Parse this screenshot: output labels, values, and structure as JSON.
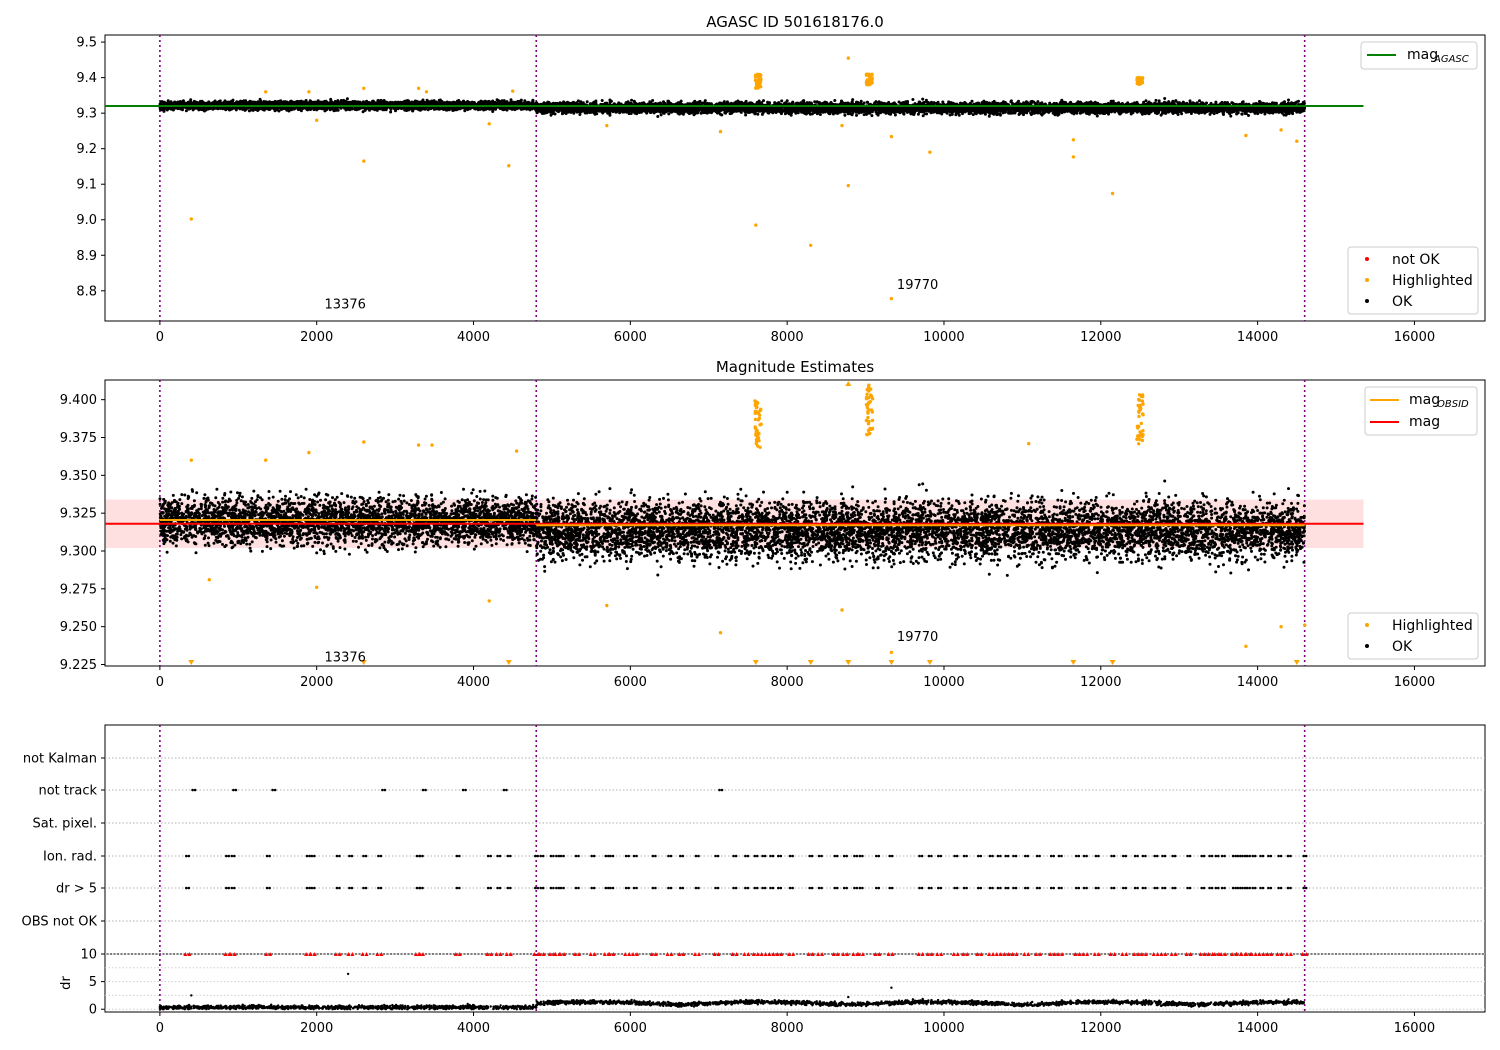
{
  "chart_data": [
    {
      "panel": "top",
      "type": "scatter",
      "title": "AGASC ID 501618176.0",
      "xlabel": "",
      "ylabel": "",
      "xlim": [
        -700,
        16900
      ],
      "ylim": [
        8.715,
        9.52
      ],
      "x_ticks": [
        0,
        2000,
        4000,
        6000,
        8000,
        10000,
        12000,
        14000,
        16000
      ],
      "y_ticks": [
        8.8,
        8.9,
        9.0,
        9.1,
        9.2,
        9.3,
        9.4,
        9.5
      ],
      "y_tick_labels": [
        "8.8",
        "8.9",
        "9.0",
        "9.1",
        "9.2",
        "9.3",
        "9.4",
        "9.5"
      ],
      "vlines": [
        0,
        4800,
        14600
      ],
      "hline": {
        "name": "mag_AGASC",
        "y": 9.32,
        "x_range": [
          -700,
          15350
        ],
        "color": "#008000"
      },
      "annotations": [
        {
          "text": "13376",
          "x": 2100,
          "y": 8.75
        },
        {
          "text": "19770",
          "x": 9400,
          "y": 8.805
        }
      ],
      "legend_line": {
        "label": "mag",
        "sub": "AGASC",
        "position": "top-right"
      },
      "legend_points": [
        {
          "label": "not OK",
          "color": "#ff0000"
        },
        {
          "label": "Highlighted",
          "color": "#ffa500"
        },
        {
          "label": "OK",
          "color": "#000000"
        }
      ],
      "series": [
        {
          "name": "OK",
          "color": "#000000",
          "band": {
            "segments": [
              [
                0,
                4800,
                9.322,
                0.01
              ],
              [
                4800,
                14600,
                9.315,
                0.013
              ]
            ]
          }
        },
        {
          "name": "Highlighted",
          "color": "#ffa500",
          "points": [
            [
              400,
              9.002
            ],
            [
              1350,
              9.36
            ],
            [
              1900,
              9.36
            ],
            [
              2000,
              9.28
            ],
            [
              2600,
              9.165
            ],
            [
              2600,
              9.37
            ],
            [
              3300,
              9.37
            ],
            [
              3400,
              9.36
            ],
            [
              4200,
              9.27
            ],
            [
              4450,
              9.152
            ],
            [
              4500,
              9.362
            ],
            [
              5700,
              9.265
            ],
            [
              7150,
              9.248
            ],
            [
              7600,
              8.985
            ],
            [
              8300,
              8.928
            ],
            [
              8700,
              9.265
            ],
            [
              8780,
              9.455
            ],
            [
              8780,
              9.096
            ],
            [
              9330,
              9.234
            ],
            [
              9330,
              8.778
            ],
            [
              9820,
              9.19
            ],
            [
              11650,
              9.225
            ],
            [
              11650,
              9.177
            ],
            [
              12150,
              9.074
            ],
            [
              13850,
              9.237
            ],
            [
              14300,
              9.253
            ],
            [
              14500,
              9.221
            ]
          ]
        },
        {
          "name": "Highlighted-cluster",
          "color": "#ffa500",
          "clusters": [
            [
              7630,
              9.37,
              9.41
            ],
            [
              9050,
              9.38,
              9.41
            ],
            [
              12500,
              9.38,
              9.4
            ]
          ]
        }
      ]
    },
    {
      "panel": "middle",
      "type": "scatter",
      "title": "Magnitude Estimates",
      "xlabel": "",
      "ylabel": "",
      "xlim": [
        -700,
        16900
      ],
      "ylim": [
        9.224,
        9.413
      ],
      "x_ticks": [
        0,
        2000,
        4000,
        6000,
        8000,
        10000,
        12000,
        14000,
        16000
      ],
      "y_ticks": [
        9.225,
        9.25,
        9.275,
        9.3,
        9.325,
        9.35,
        9.375,
        9.4
      ],
      "y_tick_labels": [
        "9.225",
        "9.250",
        "9.275",
        "9.300",
        "9.325",
        "9.350",
        "9.375",
        "9.400"
      ],
      "vlines": [
        0,
        4800,
        14600
      ],
      "mag_line": {
        "name": "mag",
        "y": 9.318,
        "band": [
          9.302,
          9.334
        ],
        "x_range": [
          -700,
          15350
        ],
        "color": "#ff0000"
      },
      "mag_obsid_segments": [
        [
          0,
          4800,
          9.3205
        ],
        [
          4800,
          14600,
          9.317
        ]
      ],
      "annotations": [
        {
          "text": "13376",
          "x": 2100,
          "y": 9.227
        },
        {
          "text": "19770",
          "x": 9400,
          "y": 9.2405
        }
      ],
      "legend_lines": [
        {
          "label": "mag",
          "sub": "OBSID",
          "color": "#ffa500"
        },
        {
          "label": "mag",
          "sub": "",
          "color": "#ff0000"
        }
      ],
      "legend_points": [
        {
          "label": "Highlighted",
          "color": "#ffa500"
        },
        {
          "label": "OK",
          "color": "#000000"
        }
      ],
      "series": [
        {
          "name": "OK",
          "color": "#000000",
          "band": {
            "segments": [
              [
                0,
                4800,
                9.32,
                0.013
              ],
              [
                4800,
                14600,
                9.314,
                0.016
              ]
            ]
          }
        },
        {
          "name": "Highlighted",
          "color": "#ffa500",
          "points": [
            [
              400,
              9.36
            ],
            [
              630,
              9.281
            ],
            [
              1350,
              9.36
            ],
            [
              1900,
              9.365
            ],
            [
              2000,
              9.276
            ],
            [
              2600,
              9.372
            ],
            [
              3300,
              9.37
            ],
            [
              3470,
              9.37
            ],
            [
              4200,
              9.267
            ],
            [
              4550,
              9.366
            ],
            [
              5700,
              9.264
            ],
            [
              7150,
              9.246
            ],
            [
              8700,
              9.261
            ],
            [
              9330,
              9.233
            ],
            [
              11080,
              9.371
            ],
            [
              13850,
              9.237
            ],
            [
              14300,
              9.25
            ],
            [
              14600,
              9.251
            ]
          ]
        },
        {
          "name": "Highlighted-cluster",
          "color": "#ffa500",
          "clusters": [
            [
              7630,
              9.368,
              9.4
            ],
            [
              9050,
              9.376,
              9.41
            ],
            [
              12500,
              9.37,
              9.404
            ]
          ]
        },
        {
          "name": "Highlighted-below-range",
          "color": "#ffa500",
          "x": [
            400,
            2600,
            4450,
            7600,
            8300,
            8780,
            9330,
            9820,
            11650,
            12150,
            14500
          ]
        },
        {
          "name": "Highlighted-above-range",
          "color": "#ffa500",
          "x": [
            8780
          ]
        }
      ]
    },
    {
      "panel": "flags",
      "type": "scatter",
      "xlim": [
        -700,
        16900
      ],
      "categories": [
        "not Kalman",
        "not track",
        "Sat. pixel.",
        "Ion. rad.",
        "dr > 5",
        "OBS not OK"
      ],
      "vlines": [
        0,
        4800,
        14600
      ],
      "series": [
        {
          "name": "not track",
          "color": "#000000",
          "x": [
            430,
            950,
            1450,
            2850,
            3370,
            3880,
            4400,
            7150
          ]
        },
        {
          "name": "Ion. rad.",
          "color": "#000000",
          "x": [
            350,
            860,
            930,
            1380,
            1890,
            1950,
            2270,
            2430,
            2610,
            2800,
            3290,
            3330,
            3800,
            4200,
            4320,
            4450,
            4800,
            4870,
            5000,
            5070,
            5130,
            5320,
            5520,
            5700,
            5760,
            5960,
            6060,
            6300,
            6500,
            6650,
            6850,
            7100,
            7330,
            7480,
            7600,
            7700,
            7800,
            7900,
            8050,
            8300,
            8420,
            8620,
            8740,
            8870,
            8940,
            9150,
            9320,
            9700,
            9820,
            9940,
            10150,
            10270,
            10450,
            10600,
            10700,
            10800,
            10900,
            11050,
            11200,
            11380,
            11480,
            11700,
            11800,
            11950,
            12150,
            12300,
            12450,
            12550,
            12700,
            12800,
            12930,
            13120,
            13300,
            13400,
            13480,
            13560,
            13700,
            13760,
            13820,
            13880,
            13950,
            14050,
            14150,
            14280,
            14400,
            14600
          ]
        },
        {
          "name": "dr > 5",
          "color": "#000000",
          "x": [
            350,
            860,
            930,
            1380,
            1890,
            1950,
            2270,
            2430,
            2610,
            2800,
            3290,
            3330,
            3800,
            4200,
            4320,
            4450,
            4800,
            4870,
            5000,
            5070,
            5130,
            5320,
            5520,
            5700,
            5760,
            5960,
            6060,
            6300,
            6500,
            6650,
            6850,
            7100,
            7330,
            7480,
            7600,
            7700,
            7800,
            7900,
            8050,
            8300,
            8420,
            8620,
            8740,
            8870,
            8940,
            9150,
            9320,
            9700,
            9820,
            9940,
            10150,
            10270,
            10450,
            10600,
            10700,
            10800,
            10900,
            11050,
            11200,
            11380,
            11480,
            11700,
            11800,
            11950,
            12150,
            12300,
            12450,
            12550,
            12700,
            12800,
            12930,
            13120,
            13300,
            13400,
            13480,
            13560,
            13700,
            13760,
            13820,
            13880,
            13950,
            14050,
            14150,
            14280,
            14400,
            14600
          ]
        }
      ]
    },
    {
      "panel": "dr",
      "type": "scatter",
      "ylabel": "dr",
      "xlim": [
        -700,
        16900
      ],
      "ylim": [
        -0.5,
        10
      ],
      "x_ticks": [
        0,
        2000,
        4000,
        6000,
        8000,
        10000,
        12000,
        14000,
        16000
      ],
      "x_tick_labels": [
        "0",
        "2000",
        "4000",
        "6000",
        "8000",
        "10000",
        "12000",
        "14000",
        "16000"
      ],
      "y_ticks": [
        0,
        5,
        10
      ],
      "y_tick_labels": [
        "0",
        "5",
        "10"
      ],
      "vlines": [
        0,
        4800,
        14600
      ],
      "series": [
        {
          "name": "dr",
          "color": "#000000",
          "segments": [
            [
              0,
              4800,
              0.35
            ],
            [
              4800,
              14600,
              0.8
            ]
          ]
        },
        {
          "name": "dr-outliers",
          "color": "#000000",
          "points": [
            [
              400,
              2.5
            ],
            [
              2400,
              6.4
            ],
            [
              8780,
              2.2
            ],
            [
              9330,
              3.9
            ]
          ]
        },
        {
          "name": "dr > 10",
          "color": "#ff0000",
          "x": [
            350,
            860,
            930,
            1380,
            1890,
            1950,
            2270,
            2430,
            2610,
            2800,
            3290,
            3330,
            3800,
            4200,
            4320,
            4450,
            4800,
            4870,
            5000,
            5070,
            5130,
            5320,
            5520,
            5700,
            5760,
            5960,
            6060,
            6300,
            6500,
            6650,
            6850,
            7100,
            7330,
            7480,
            7600,
            7700,
            7800,
            7900,
            8050,
            8300,
            8420,
            8620,
            8740,
            8870,
            8940,
            9150,
            9320,
            9700,
            9820,
            9940,
            10150,
            10270,
            10450,
            10600,
            10700,
            10800,
            10900,
            11050,
            11200,
            11380,
            11480,
            11700,
            11800,
            11950,
            12150,
            12300,
            12450,
            12550,
            12700,
            12800,
            12930,
            13120,
            13300,
            13400,
            13480,
            13560,
            13700,
            13760,
            13820,
            13880,
            13950,
            14050,
            14150,
            14280,
            14400,
            14600
          ]
        }
      ]
    }
  ]
}
